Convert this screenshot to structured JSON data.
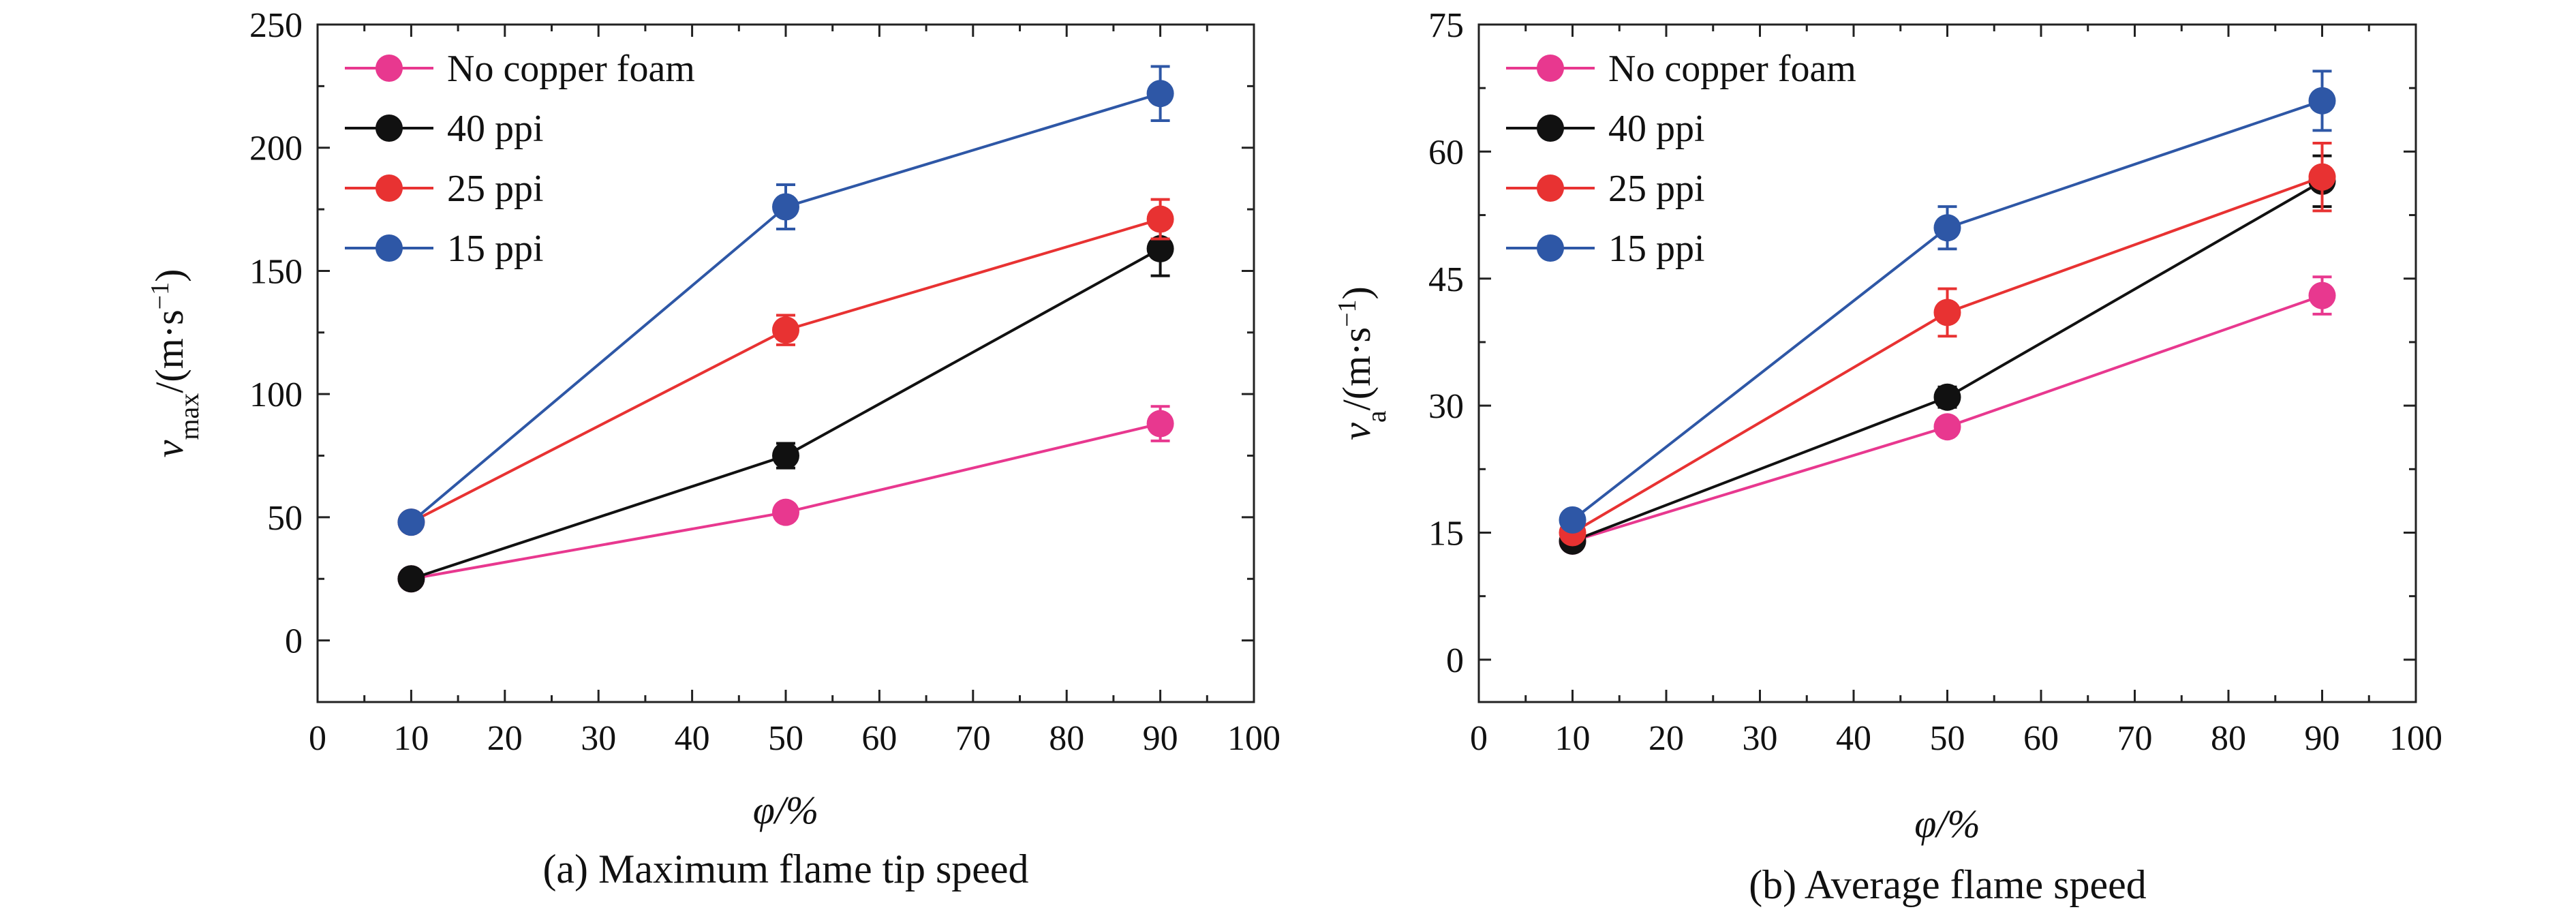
{
  "chart_data": [
    {
      "type": "line",
      "caption": "(a) Maximum flame tip speed",
      "xlabel": "φ/%",
      "ylabel": {
        "main": "v",
        "sub": "max",
        "unit": "/(m·s",
        "sup": "−1",
        "close": ")"
      },
      "xlim": [
        0,
        100
      ],
      "ylim": [
        -25,
        250
      ],
      "x_ticks": [
        0,
        10,
        20,
        30,
        40,
        50,
        60,
        70,
        80,
        90,
        100
      ],
      "y_ticks": [
        0,
        50,
        100,
        150,
        200,
        250
      ],
      "x": [
        10,
        50,
        90
      ],
      "legend_position": "top-left",
      "grid": false,
      "series": [
        {
          "name": "No copper foam",
          "color": "#e8388f",
          "values": [
            25,
            52,
            88
          ],
          "errors": [
            3,
            3,
            7
          ]
        },
        {
          "name": "40 ppi",
          "color": "#111111",
          "values": [
            25,
            75,
            159
          ],
          "errors": [
            3,
            5,
            11
          ]
        },
        {
          "name": "25 ppi",
          "color": "#e83232",
          "values": [
            48,
            126,
            171
          ],
          "errors": [
            3,
            6,
            8
          ]
        },
        {
          "name": "15 ppi",
          "color": "#2e57a6",
          "values": [
            48,
            176,
            222
          ],
          "errors": [
            3,
            9,
            11
          ]
        }
      ]
    },
    {
      "type": "line",
      "caption": "(b) Average flame speed",
      "xlabel": "φ/%",
      "ylabel": {
        "main": "v",
        "sub": "a",
        "unit": "/(m·s",
        "sup": "−1",
        "close": ")"
      },
      "xlim": [
        0,
        100
      ],
      "ylim": [
        -5,
        75
      ],
      "x_ticks": [
        0,
        10,
        20,
        30,
        40,
        50,
        60,
        70,
        80,
        90,
        100
      ],
      "y_ticks": [
        0,
        15,
        30,
        45,
        60,
        75
      ],
      "x": [
        10,
        50,
        90
      ],
      "legend_position": "top-left",
      "grid": false,
      "series": [
        {
          "name": "No copper foam",
          "color": "#e8388f",
          "values": [
            14,
            27.5,
            43
          ],
          "errors": [
            0.8,
            1.0,
            2.2
          ]
        },
        {
          "name": "40 ppi",
          "color": "#111111",
          "values": [
            14,
            31,
            56.5
          ],
          "errors": [
            0.8,
            1.2,
            3.0
          ]
        },
        {
          "name": "25 ppi",
          "color": "#e83232",
          "values": [
            15,
            41,
            57
          ],
          "errors": [
            0.8,
            2.8,
            4.0
          ]
        },
        {
          "name": "15 ppi",
          "color": "#2e57a6",
          "values": [
            16.5,
            51,
            66
          ],
          "errors": [
            0.8,
            2.5,
            3.5
          ]
        }
      ]
    }
  ]
}
